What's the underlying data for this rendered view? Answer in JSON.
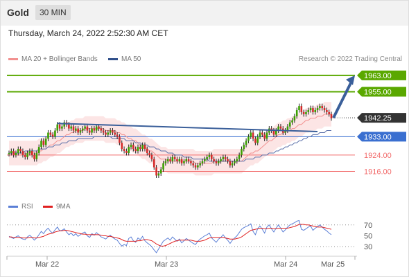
{
  "header": {
    "symbol": "Gold",
    "timeframe": "30 MIN"
  },
  "timestamp": "Thursday, March 24, 2022 2:52:30 AM CET",
  "copyright": "Research © 2022 Trading Central",
  "colors": {
    "green": "#5aa800",
    "blue": "#3a6fd0",
    "red": "#f26b6b",
    "navy": "#3a5f9a",
    "dark": "#333333",
    "candle_up": "#3aa000",
    "candle_down": "#d42a2a",
    "band": "#fbe0e0",
    "rsi": "#5b7fd6",
    "rsi_ma": "#e02020"
  },
  "chart_data": [
    {
      "type": "line",
      "legend": [
        {
          "name": "MA 20 + Bollinger Bands",
          "color": "#f2908f"
        },
        {
          "name": "MA 50",
          "color": "#2f4f8a"
        }
      ],
      "x_ticks": [
        "Mar 22",
        "Mar 23",
        "Mar 24",
        "Mar 25"
      ],
      "ylim": [
        1905,
        1966
      ],
      "levels": [
        {
          "value": 1963.0,
          "label": "1963.00",
          "kind": "resistance"
        },
        {
          "value": 1955.0,
          "label": "1955.00",
          "kind": "resistance"
        },
        {
          "value": 1942.25,
          "label": "1942.25",
          "kind": "last"
        },
        {
          "value": 1933.0,
          "label": "1933.00",
          "kind": "pivot"
        },
        {
          "value": 1924.0,
          "label": "1924.00",
          "kind": "support"
        },
        {
          "value": 1916.0,
          "label": "1916.00",
          "kind": "support"
        }
      ],
      "close": [
        1925,
        1926,
        1924,
        1925,
        1927,
        1926,
        1924,
        1923,
        1925,
        1926,
        1924,
        1922,
        1925,
        1928,
        1931,
        1929,
        1932,
        1935,
        1934,
        1933,
        1936,
        1939,
        1937,
        1938,
        1940,
        1939,
        1937,
        1938,
        1936,
        1937,
        1935,
        1936,
        1937,
        1938,
        1936,
        1935,
        1937,
        1936,
        1938,
        1937,
        1936,
        1935,
        1934,
        1935,
        1936,
        1935,
        1934,
        1933,
        1930,
        1927,
        1926,
        1925,
        1928,
        1929,
        1927,
        1926,
        1928,
        1927,
        1929,
        1927,
        1925,
        1924,
        1922,
        1918,
        1914,
        1915,
        1917,
        1920,
        1921,
        1922,
        1921,
        1923,
        1922,
        1921,
        1922,
        1920,
        1921,
        1922,
        1921,
        1920,
        1919,
        1918,
        1919,
        1920,
        1921,
        1922,
        1923,
        1924,
        1922,
        1921,
        1920,
        1921,
        1922,
        1923,
        1922,
        1921,
        1919,
        1920,
        1921,
        1922,
        1924,
        1927,
        1929,
        1931,
        1933,
        1935,
        1932,
        1930,
        1933,
        1935,
        1934,
        1932,
        1935,
        1937,
        1936,
        1934,
        1936,
        1938,
        1937,
        1935,
        1936,
        1938,
        1940,
        1941,
        1943,
        1946,
        1948,
        1945,
        1944,
        1945,
        1946,
        1947,
        1945,
        1946,
        1947,
        1948,
        1947,
        1946,
        1945,
        1944,
        1942
      ],
      "ma20": [
        1925,
        1925,
        1925,
        1925,
        1925,
        1925,
        1925,
        1925,
        1925,
        1925,
        1925,
        1925,
        1925,
        1926,
        1926,
        1927,
        1927,
        1928,
        1929,
        1929,
        1930,
        1931,
        1931,
        1932,
        1933,
        1934,
        1934,
        1935,
        1935,
        1936,
        1936,
        1936,
        1936,
        1937,
        1937,
        1937,
        1937,
        1937,
        1937,
        1937,
        1937,
        1937,
        1936,
        1936,
        1936,
        1936,
        1936,
        1935,
        1935,
        1934,
        1934,
        1933,
        1932,
        1932,
        1931,
        1931,
        1930,
        1929,
        1928,
        1928,
        1927,
        1926,
        1926,
        1925,
        1924,
        1923,
        1922,
        1922,
        1922,
        1921,
        1921,
        1921,
        1921,
        1921,
        1921,
        1921,
        1921,
        1921,
        1921,
        1921,
        1921,
        1920,
        1920,
        1920,
        1920,
        1920,
        1920,
        1920,
        1920,
        1921,
        1921,
        1921,
        1921,
        1921,
        1921,
        1921,
        1921,
        1921,
        1921,
        1921,
        1921,
        1921,
        1922,
        1923,
        1924,
        1925,
        1925,
        1926,
        1926,
        1927,
        1928,
        1929,
        1930,
        1931,
        1931,
        1932,
        1933,
        1934,
        1934,
        1935,
        1935,
        1936,
        1936,
        1937,
        1937,
        1938,
        1939,
        1939,
        1940,
        1941,
        1941,
        1942,
        1942,
        1942,
        1943,
        1943,
        1943,
        1944,
        1944,
        1944,
        1944
      ],
      "ma50": [
        1925,
        1925,
        1925,
        1925,
        1925,
        1925,
        1925,
        1926,
        1926,
        1926,
        1926,
        1926,
        1926,
        1927,
        1927,
        1927,
        1927,
        1928,
        1928,
        1928,
        1929,
        1929,
        1929,
        1930,
        1930,
        1930,
        1931,
        1931,
        1931,
        1931,
        1932,
        1932,
        1932,
        1932,
        1932,
        1932,
        1932,
        1933,
        1933,
        1933,
        1933,
        1933,
        1933,
        1933,
        1933,
        1932,
        1932,
        1932,
        1932,
        1932,
        1932,
        1931,
        1931,
        1931,
        1931,
        1930,
        1930,
        1930,
        1929,
        1929,
        1929,
        1928,
        1928,
        1928,
        1927,
        1927,
        1926,
        1926,
        1926,
        1925,
        1925,
        1925,
        1924,
        1924,
        1924,
        1924,
        1923,
        1923,
        1923,
        1923,
        1922,
        1922,
        1922,
        1922,
        1922,
        1922,
        1922,
        1921,
        1921,
        1921,
        1921,
        1921,
        1921,
        1921,
        1921,
        1921,
        1921,
        1921,
        1921,
        1921,
        1921,
        1921,
        1921,
        1922,
        1922,
        1922,
        1922,
        1923,
        1923,
        1923,
        1924,
        1924,
        1924,
        1925,
        1925,
        1925,
        1926,
        1926,
        1927,
        1927,
        1928,
        1928,
        1929,
        1929,
        1930,
        1930,
        1931,
        1931,
        1932,
        1932,
        1933,
        1933,
        1934,
        1934,
        1934,
        1935,
        1935,
        1935,
        1936,
        1936,
        1936
      ],
      "upper_band_offset": 6,
      "trendlines": [
        {
          "from": [
            0.0,
            1939.5
          ],
          "to": [
            1.0,
            1935.5
          ]
        }
      ],
      "arrow": {
        "from": 1942.25,
        "to": 1963.0
      }
    },
    {
      "type": "line",
      "legend": [
        {
          "name": "RSI",
          "color": "#5b7fd6"
        },
        {
          "name": "9MA",
          "color": "#e02020"
        }
      ],
      "y_ticks": [
        70,
        50,
        30
      ],
      "ylim": [
        15,
        85
      ],
      "rsi": [
        49,
        47,
        45,
        48,
        50,
        46,
        44,
        43,
        48,
        51,
        47,
        42,
        46,
        52,
        58,
        54,
        60,
        64,
        58,
        55,
        61,
        66,
        59,
        60,
        63,
        57,
        52,
        55,
        50,
        54,
        49,
        52,
        55,
        57,
        50,
        47,
        54,
        51,
        56,
        52,
        48,
        46,
        44,
        48,
        51,
        47,
        44,
        42,
        36,
        31,
        34,
        32,
        45,
        48,
        41,
        38,
        46,
        43,
        49,
        41,
        37,
        34,
        30,
        24,
        19,
        26,
        33,
        40,
        43,
        46,
        42,
        48,
        44,
        40,
        44,
        37,
        41,
        45,
        42,
        39,
        36,
        34,
        40,
        44,
        47,
        50,
        52,
        55,
        46,
        42,
        38,
        44,
        47,
        52,
        46,
        42,
        36,
        42,
        46,
        50,
        56,
        62,
        65,
        67,
        69,
        72,
        58,
        52,
        63,
        68,
        62,
        55,
        66,
        70,
        63,
        57,
        64,
        70,
        64,
        57,
        61,
        66,
        70,
        72,
        74,
        77,
        78,
        62,
        60,
        63,
        66,
        68,
        60,
        64,
        67,
        70,
        66,
        62,
        59,
        55,
        52
      ],
      "rsi_ma": [
        48,
        48,
        47,
        47,
        47,
        47,
        46,
        46,
        46,
        47,
        47,
        46,
        46,
        47,
        48,
        49,
        51,
        53,
        54,
        55,
        57,
        58,
        59,
        59,
        60,
        60,
        59,
        58,
        57,
        56,
        55,
        54,
        53,
        53,
        52,
        52,
        52,
        52,
        52,
        52,
        51,
        50,
        50,
        49,
        49,
        48,
        47,
        46,
        45,
        43,
        41,
        40,
        40,
        40,
        40,
        40,
        41,
        41,
        42,
        43,
        43,
        42,
        41,
        38,
        35,
        33,
        31,
        31,
        32,
        34,
        36,
        38,
        40,
        41,
        42,
        42,
        42,
        42,
        42,
        42,
        41,
        40,
        40,
        40,
        41,
        42,
        44,
        46,
        47,
        47,
        47,
        47,
        47,
        47,
        46,
        45,
        44,
        44,
        44,
        45,
        46,
        48,
        51,
        54,
        57,
        60,
        61,
        62,
        63,
        64,
        64,
        63,
        63,
        64,
        64,
        63,
        63,
        64,
        64,
        64,
        64,
        64,
        65,
        66,
        67,
        69,
        71,
        71,
        71,
        70,
        70,
        69,
        68,
        67,
        66,
        66,
        66,
        65,
        64,
        63,
        62
      ]
    }
  ]
}
